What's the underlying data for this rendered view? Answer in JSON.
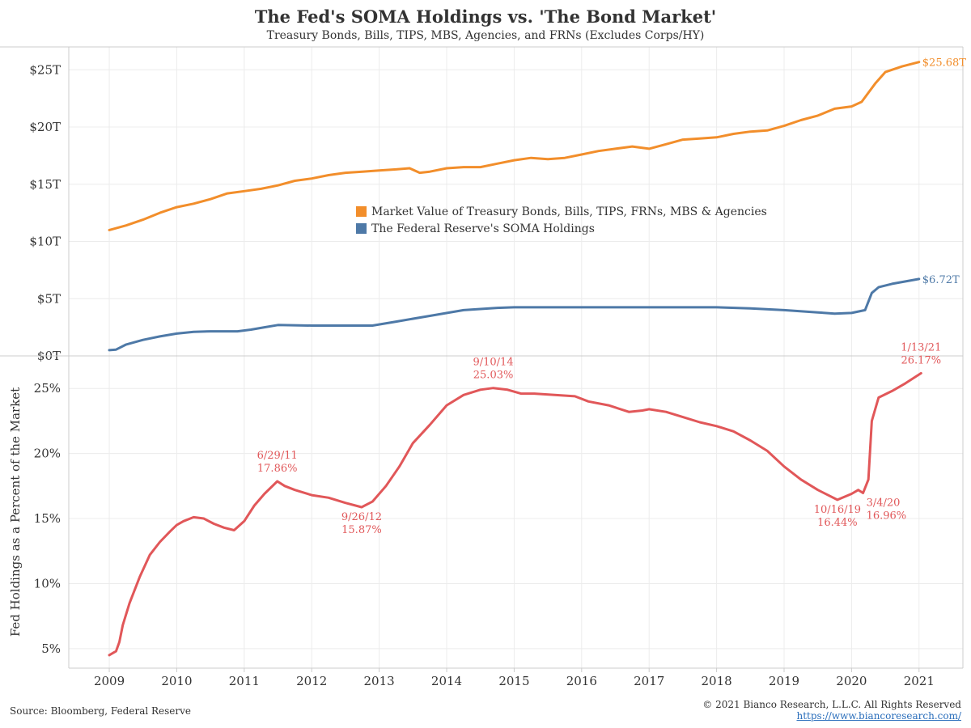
{
  "title": "The Fed's SOMA Holdings vs. 'The Bond Market'",
  "subtitle": "Treasury Bonds, Bills, TIPS, MBS, Agencies, and FRNs (Excludes Corps/HY)",
  "footer": {
    "source": "Source: Bloomberg, Federal Reserve",
    "copyright": "© 2021 Bianco Research, L.L.C. All Rights Reserved",
    "url": "https://www.biancoresearch.com/"
  },
  "colors": {
    "market": "#f28e2b",
    "soma": "#4e79a7",
    "percent": "#e15759",
    "grid": "#ececec",
    "axis": "#cccccc"
  },
  "chart_data": [
    {
      "type": "line",
      "ylim": [
        0,
        27
      ],
      "y_tick_labels": [
        "$0T",
        "$5T",
        "$10T",
        "$15T",
        "$20T",
        "$25T"
      ],
      "y_tick_values": [
        0,
        5,
        10,
        15,
        20,
        25
      ],
      "legend": {
        "placement": "center",
        "entries": [
          {
            "label": "Market Value of Treasury Bonds, Bills, TIPS, FRNs, MBS & Agencies",
            "color": "#f28e2b"
          },
          {
            "label": "The Federal Reserve's SOMA Holdings",
            "color": "#4e79a7"
          }
        ]
      },
      "series": [
        {
          "id": "market",
          "x": [
            2009.0,
            2009.25,
            2009.5,
            2009.75,
            2010.0,
            2010.25,
            2010.5,
            2010.75,
            2011.0,
            2011.25,
            2011.5,
            2011.75,
            2012.0,
            2012.25,
            2012.5,
            2012.75,
            2013.0,
            2013.25,
            2013.45,
            2013.6,
            2013.75,
            2014.0,
            2014.25,
            2014.5,
            2014.75,
            2015.0,
            2015.25,
            2015.5,
            2015.75,
            2016.0,
            2016.25,
            2016.5,
            2016.75,
            2017.0,
            2017.25,
            2017.5,
            2017.75,
            2018.0,
            2018.25,
            2018.5,
            2018.75,
            2019.0,
            2019.25,
            2019.5,
            2019.75,
            2020.0,
            2020.15,
            2020.25,
            2020.35,
            2020.5,
            2020.75,
            2021.0
          ],
          "values": [
            11.0,
            11.4,
            11.9,
            12.5,
            13.0,
            13.3,
            13.7,
            14.2,
            14.4,
            14.6,
            14.9,
            15.3,
            15.5,
            15.8,
            16.0,
            16.1,
            16.2,
            16.3,
            16.4,
            16.0,
            16.1,
            16.4,
            16.5,
            16.5,
            16.8,
            17.1,
            17.3,
            17.2,
            17.3,
            17.6,
            17.9,
            18.1,
            18.3,
            18.1,
            18.5,
            18.9,
            19.0,
            19.1,
            19.4,
            19.6,
            19.7,
            20.1,
            20.6,
            21.0,
            21.6,
            21.8,
            22.2,
            23.0,
            23.8,
            24.8,
            25.3,
            25.68
          ],
          "end_label": "$25.68T"
        },
        {
          "id": "soma",
          "x": [
            2009.0,
            2009.1,
            2009.25,
            2009.5,
            2009.75,
            2010.0,
            2010.25,
            2010.5,
            2010.9,
            2011.1,
            2011.3,
            2011.5,
            2012.0,
            2012.5,
            2012.9,
            2013.25,
            2013.75,
            2014.25,
            2014.75,
            2015.0,
            2016.0,
            2017.0,
            2018.0,
            2018.5,
            2019.0,
            2019.5,
            2019.75,
            2020.0,
            2020.2,
            2020.3,
            2020.4,
            2020.6,
            2021.0
          ],
          "values": [
            0.5,
            0.55,
            1.0,
            1.4,
            1.7,
            1.95,
            2.1,
            2.15,
            2.15,
            2.3,
            2.5,
            2.7,
            2.65,
            2.65,
            2.65,
            3.0,
            3.5,
            4.0,
            4.2,
            4.25,
            4.25,
            4.25,
            4.25,
            4.15,
            4.0,
            3.8,
            3.7,
            3.75,
            4.0,
            5.5,
            6.0,
            6.3,
            6.72
          ],
          "end_label": "$6.72T"
        }
      ]
    },
    {
      "type": "line",
      "ylabel": "Fed Holdings as a Percent of the Market",
      "ylim": [
        3.5,
        27.5
      ],
      "y_tick_labels": [
        "5%",
        "10%",
        "15%",
        "20%",
        "25%"
      ],
      "y_tick_values": [
        5,
        10,
        15,
        20,
        25
      ],
      "x_tick_labels": [
        "2009",
        "2010",
        "2011",
        "2012",
        "2013",
        "2014",
        "2015",
        "2016",
        "2017",
        "2018",
        "2019",
        "2020",
        "2021"
      ],
      "x_tick_values": [
        2009,
        2010,
        2011,
        2012,
        2013,
        2014,
        2015,
        2016,
        2017,
        2018,
        2019,
        2020,
        2021
      ],
      "series": [
        {
          "id": "percent",
          "x": [
            2009.0,
            2009.1,
            2009.15,
            2009.2,
            2009.3,
            2009.45,
            2009.6,
            2009.75,
            2009.9,
            2010.0,
            2010.1,
            2010.25,
            2010.4,
            2010.55,
            2010.7,
            2010.85,
            2011.0,
            2011.15,
            2011.3,
            2011.49,
            2011.6,
            2011.75,
            2012.0,
            2012.25,
            2012.5,
            2012.74,
            2012.9,
            2013.1,
            2013.3,
            2013.5,
            2013.75,
            2014.0,
            2014.25,
            2014.5,
            2014.69,
            2014.9,
            2015.1,
            2015.3,
            2015.6,
            2015.9,
            2016.1,
            2016.4,
            2016.7,
            2016.9,
            2017.0,
            2017.25,
            2017.5,
            2017.75,
            2018.0,
            2018.25,
            2018.5,
            2018.75,
            2019.0,
            2019.25,
            2019.5,
            2019.79,
            2020.0,
            2020.1,
            2020.17,
            2020.25,
            2020.3,
            2020.4,
            2020.6,
            2020.8,
            2021.03
          ],
          "values": [
            4.5,
            4.8,
            5.5,
            6.8,
            8.5,
            10.5,
            12.2,
            13.2,
            14.0,
            14.5,
            14.8,
            15.1,
            15.0,
            14.6,
            14.3,
            14.1,
            14.8,
            16.0,
            16.9,
            17.86,
            17.5,
            17.2,
            16.8,
            16.6,
            16.2,
            15.87,
            16.3,
            17.5,
            19.0,
            20.8,
            22.2,
            23.7,
            24.5,
            24.9,
            25.03,
            24.9,
            24.6,
            24.6,
            24.5,
            24.4,
            24.0,
            23.7,
            23.2,
            23.3,
            23.4,
            23.2,
            22.8,
            22.4,
            22.1,
            21.7,
            21.0,
            20.2,
            19.0,
            18.0,
            17.2,
            16.44,
            16.9,
            17.2,
            16.96,
            18.0,
            22.5,
            24.3,
            24.8,
            25.4,
            26.17
          ]
        }
      ],
      "annotations": [
        {
          "x": 2011.49,
          "y": 17.86,
          "date": "6/29/11",
          "value": "17.86%",
          "position": "above"
        },
        {
          "x": 2012.74,
          "y": 15.87,
          "date": "9/26/12",
          "value": "15.87%",
          "position": "below"
        },
        {
          "x": 2014.69,
          "y": 25.03,
          "date": "9/10/14",
          "value": "25.03%",
          "position": "above"
        },
        {
          "x": 2019.79,
          "y": 16.44,
          "date": "10/16/19",
          "value": "16.44%",
          "position": "below"
        },
        {
          "x": 2020.17,
          "y": 16.96,
          "date": "3/4/20",
          "value": "16.96%",
          "position": "below-right"
        },
        {
          "x": 2021.03,
          "y": 26.17,
          "date": "1/13/21",
          "value": "26.17%",
          "position": "above"
        }
      ]
    }
  ]
}
